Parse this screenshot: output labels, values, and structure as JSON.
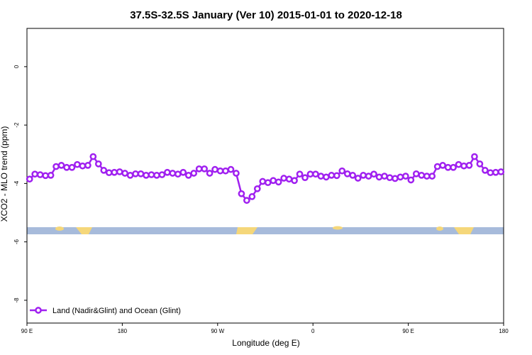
{
  "chart_data": {
    "type": "line",
    "title": "37.5S-32.5S January (Ver 10)   2015-01-01 to 2020-12-18",
    "x_label": "Longitude (deg E)",
    "y_label": "XCO2 - MLO trend (ppm)",
    "xlim": [
      90,
      540
    ],
    "ylim": [
      -8.78,
      1.31
    ],
    "xticks": [
      {
        "value": 90,
        "label": "90 E"
      },
      180,
      {
        "value": 270,
        "label": "90 W"
      },
      {
        "value": 360,
        "label": "0"
      },
      {
        "value": 450,
        "label": "90 E"
      },
      {
        "value": 540,
        "label": "180"
      }
    ],
    "yticks": [
      0,
      -2,
      -4,
      -6,
      -8
    ],
    "legend": "bottom-left",
    "x": [
      92.5,
      97.5,
      102.5,
      107.5,
      112.5,
      117.5,
      122.5,
      127.5,
      132.5,
      137.5,
      142.5,
      147.5,
      152.5,
      157.5,
      162.5,
      167.5,
      172.5,
      177.5,
      182.5,
      187.5,
      192.5,
      197.5,
      202.5,
      207.5,
      212.5,
      217.5,
      222.5,
      227.5,
      232.5,
      237.5,
      242.5,
      247.5,
      252.5,
      257.5,
      262.5,
      267.5,
      272.5,
      277.5,
      282.5,
      287.5,
      292.5,
      297.5,
      302.5,
      307.5,
      312.5,
      317.5,
      322.5,
      327.5,
      332.5,
      337.5,
      342.5,
      347.5,
      352.5,
      357.5,
      362.5,
      367.5,
      372.5,
      377.5,
      382.5,
      387.5,
      392.5,
      397.5,
      402.5,
      407.5,
      412.5,
      417.5,
      422.5,
      427.5,
      432.5,
      437.5,
      442.5,
      447.5,
      452.5,
      457.5,
      462.5,
      467.5,
      472.5,
      477.5,
      482.5,
      487.5,
      492.5,
      497.5,
      502.5,
      507.5,
      512.5,
      517.5,
      522.5,
      527.5,
      532.5,
      537.5
    ],
    "series": [
      {
        "name": "Land (Nadir&Glint) and Ocean (Glint)",
        "color": "#a020f0",
        "values": [
          -3.85,
          -3.68,
          -3.7,
          -3.73,
          -3.72,
          -3.42,
          -3.38,
          -3.45,
          -3.45,
          -3.35,
          -3.4,
          -3.38,
          -3.08,
          -3.33,
          -3.55,
          -3.63,
          -3.62,
          -3.6,
          -3.65,
          -3.72,
          -3.67,
          -3.67,
          -3.72,
          -3.7,
          -3.72,
          -3.7,
          -3.62,
          -3.65,
          -3.68,
          -3.62,
          -3.72,
          -3.65,
          -3.5,
          -3.5,
          -3.65,
          -3.52,
          -3.57,
          -3.57,
          -3.52,
          -3.65,
          -4.35,
          -4.58,
          -4.45,
          -4.18,
          -3.93,
          -3.97,
          -3.9,
          -3.95,
          -3.82,
          -3.85,
          -3.9,
          -3.68,
          -3.8,
          -3.68,
          -3.68,
          -3.75,
          -3.78,
          -3.72,
          -3.73,
          -3.57,
          -3.67,
          -3.72,
          -3.82,
          -3.72,
          -3.75,
          -3.68,
          -3.78,
          -3.75,
          -3.8,
          -3.83,
          -3.78,
          -3.75,
          -3.88,
          -3.67,
          -3.72,
          -3.75,
          -3.75,
          -3.42,
          -3.38,
          -3.45,
          -3.45,
          -3.35,
          -3.4,
          -3.38,
          -3.08,
          -3.33,
          -3.55,
          -3.63,
          -3.62,
          -3.6
        ]
      }
    ]
  }
}
